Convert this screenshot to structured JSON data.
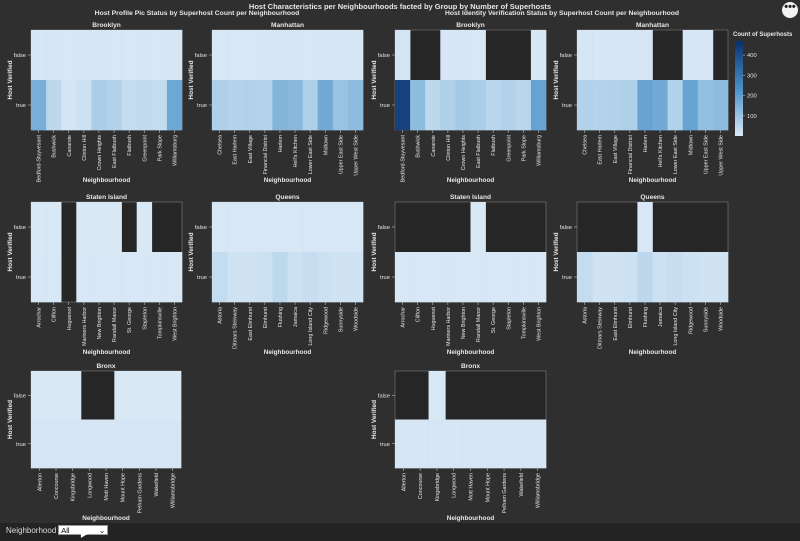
{
  "page": {
    "main_title": "Host Characteristics per Neighbourhoods facted by Group by Number of Superhosts",
    "menu_glyph": "•••",
    "filter_label": "Neighborhood",
    "filter_value": "All",
    "filter_chevron": "⌄"
  },
  "colors": {
    "background": "#2f2f2f",
    "missing": "#262626",
    "scale_low": "#dbe9f6",
    "scale_high": "#08306b"
  },
  "chart_data": [
    {
      "type": "heatmap",
      "title": "Host Profile Pic Status by Superhost Count per Neighbourhood",
      "ylabel": "Host Verified",
      "xlabel": "Neighbourhood",
      "y_categories": [
        "false",
        "true"
      ],
      "facets": [
        {
          "name": "Brooklyn",
          "categories": [
            "Bedford-Stuyvesant",
            "Bushwick",
            "Canarsie",
            "Clinton Hill",
            "Crown Heights",
            "East Flatbush",
            "Flatbush",
            "Greenpoint",
            "Park Slope",
            "Williamsburg"
          ],
          "false": [
            15,
            12,
            10,
            12,
            14,
            10,
            11,
            12,
            10,
            14
          ],
          "true": [
            230,
            80,
            20,
            40,
            130,
            110,
            60,
            70,
            60,
            250
          ]
        },
        {
          "name": "Manhattan",
          "categories": [
            "Chelsea",
            "East Harlem",
            "East Village",
            "Financial District",
            "Harlem",
            "Hell's Kitchen",
            "Lower East Side",
            "Midtown",
            "Upper East Side",
            "Upper West Side"
          ],
          "false": [
            10,
            10,
            10,
            12,
            14,
            12,
            10,
            12,
            12,
            12
          ],
          "true": [
            120,
            100,
            110,
            100,
            210,
            200,
            120,
            240,
            170,
            190
          ]
        },
        {
          "name": "Staten Island",
          "categories": [
            "Arrochar",
            "Clifton",
            "Huguenot",
            "Mariners Harbor",
            "New Brighton",
            "Randall Manor",
            "St. George",
            "Stapleton",
            "Tompkinsville",
            "West Brighton"
          ],
          "false": [
            5,
            5,
            null,
            5,
            5,
            5,
            null,
            5,
            null,
            null
          ],
          "true": [
            10,
            10,
            null,
            10,
            10,
            10,
            10,
            10,
            10,
            10
          ]
        },
        {
          "name": "Queens",
          "categories": [
            "Astoria",
            "Ditmars Steinway",
            "East Elmhurst",
            "Elmhurst",
            "Flushing",
            "Jamaica",
            "Long Island City",
            "Ridgewood",
            "Sunnyside",
            "Woodside"
          ],
          "false": [
            8,
            8,
            8,
            8,
            8,
            8,
            8,
            8,
            8,
            8
          ],
          "true": [
            60,
            30,
            30,
            40,
            80,
            40,
            50,
            40,
            30,
            30
          ]
        },
        {
          "name": "Bronx",
          "categories": [
            "Allerton",
            "Concourse",
            "Kingsbridge",
            "Longwood",
            "Mott Haven",
            "Mount Hope",
            "Pelham Gardens",
            "Wakefield",
            "Williamsbridge"
          ],
          "false": [
            5,
            5,
            5,
            null,
            null,
            5,
            5,
            5,
            5
          ],
          "true": [
            12,
            12,
            12,
            12,
            12,
            12,
            12,
            12,
            12
          ]
        }
      ]
    },
    {
      "type": "heatmap",
      "title": "Host Identity Verification Status by Superhost Count per Neighbourhood",
      "ylabel": "Host Verified",
      "xlabel": "Neighbourhood",
      "y_categories": [
        "false",
        "true"
      ],
      "legend": {
        "title": "Count of Superhosts",
        "ticks": [
          100,
          200,
          300,
          400
        ],
        "domain": [
          0,
          470
        ],
        "placement": "right"
      },
      "facets": [
        {
          "name": "Brooklyn",
          "categories": [
            "Bedford-Stuyvesant",
            "Bushwick",
            "Canarsie",
            "Clinton Hill",
            "Crown Heights",
            "East Flatbush",
            "Flatbush",
            "Greenpoint",
            "Park Slope",
            "Williamsburg"
          ],
          "false": [
            20,
            null,
            null,
            10,
            15,
            10,
            null,
            null,
            null,
            15
          ],
          "true": [
            440,
            190,
            80,
            120,
            150,
            130,
            90,
            110,
            90,
            260
          ]
        },
        {
          "name": "Manhattan",
          "categories": [
            "Chelsea",
            "East Harlem",
            "East Village",
            "Financial District",
            "Harlem",
            "Hell's Kitchen",
            "Lower East Side",
            "Midtown",
            "Upper East Side",
            "Upper West Side"
          ],
          "false": [
            12,
            12,
            12,
            12,
            12,
            null,
            null,
            12,
            12,
            null
          ],
          "true": [
            110,
            100,
            110,
            120,
            260,
            240,
            110,
            260,
            180,
            190
          ]
        },
        {
          "name": "Staten Island",
          "categories": [
            "Arrochar",
            "Clifton",
            "Huguenot",
            "Mariners Harbor",
            "New Brighton",
            "Randall Manor",
            "St. George",
            "Stapleton",
            "Tompkinsville",
            "West Brighton"
          ],
          "false": [
            null,
            null,
            null,
            null,
            null,
            5,
            null,
            null,
            null,
            null
          ],
          "true": [
            10,
            10,
            10,
            10,
            10,
            10,
            10,
            10,
            10,
            10
          ]
        },
        {
          "name": "Queens",
          "categories": [
            "Astoria",
            "Ditmars Steinway",
            "East Elmhurst",
            "Elmhurst",
            "Flushing",
            "Jamaica",
            "Long Island City",
            "Ridgewood",
            "Sunnyside",
            "Woodside"
          ],
          "false": [
            null,
            null,
            null,
            null,
            8,
            null,
            null,
            null,
            null,
            null
          ],
          "true": [
            60,
            30,
            30,
            40,
            80,
            40,
            50,
            40,
            30,
            30
          ]
        },
        {
          "name": "Bronx",
          "categories": [
            "Allerton",
            "Concourse",
            "Kingsbridge",
            "Longwood",
            "Mott Haven",
            "Mount Hope",
            "Pelham Gardens",
            "Wakefield",
            "Williamsbridge"
          ],
          "false": [
            null,
            null,
            5,
            null,
            null,
            null,
            null,
            null,
            null
          ],
          "true": [
            12,
            12,
            12,
            12,
            12,
            12,
            12,
            12,
            12
          ]
        }
      ]
    }
  ]
}
